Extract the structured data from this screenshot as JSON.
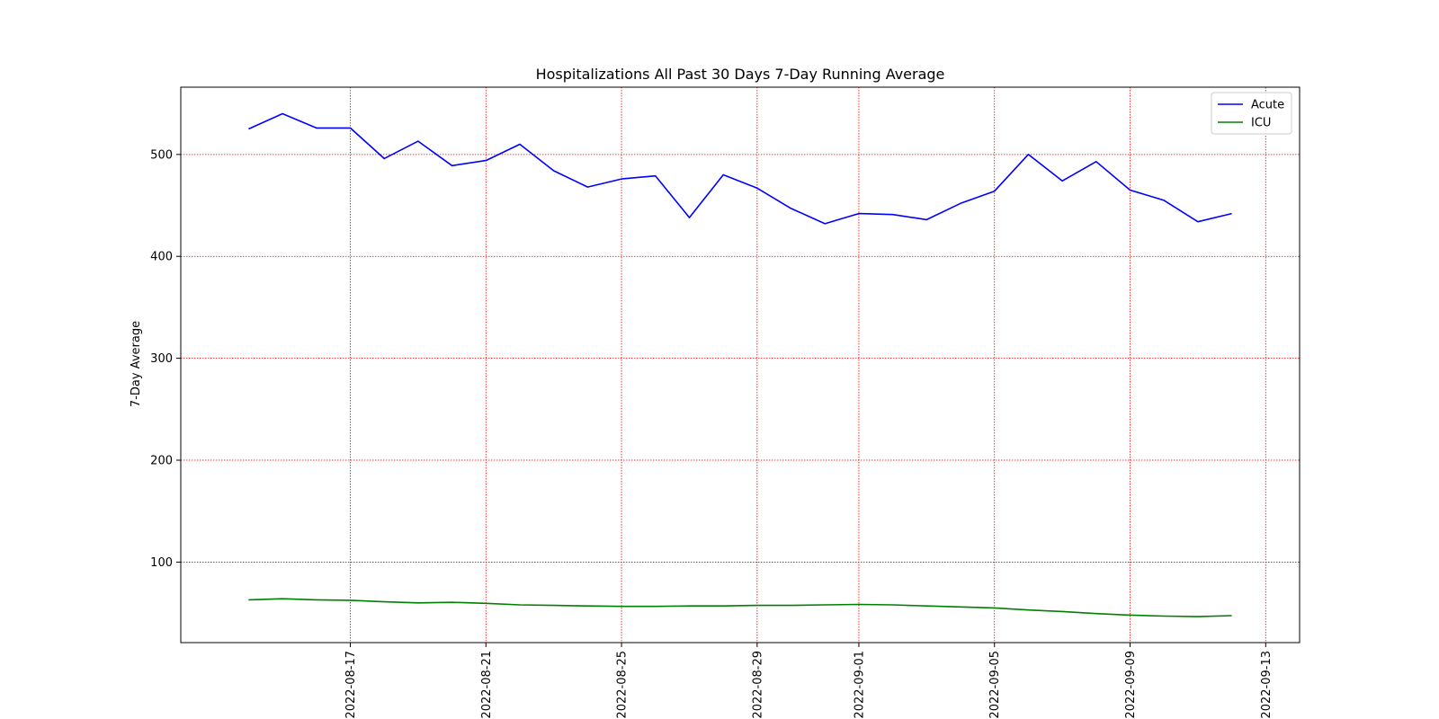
{
  "chart_data": {
    "type": "line",
    "title": "Hospitalizations All Past 30 Days 7-Day Running Average",
    "xlabel": "",
    "ylabel": "7-Day Average",
    "x": [
      "2022-08-14",
      "2022-08-15",
      "2022-08-16",
      "2022-08-17",
      "2022-08-18",
      "2022-08-19",
      "2022-08-20",
      "2022-08-21",
      "2022-08-22",
      "2022-08-23",
      "2022-08-24",
      "2022-08-25",
      "2022-08-26",
      "2022-08-27",
      "2022-08-28",
      "2022-08-29",
      "2022-08-30",
      "2022-08-31",
      "2022-09-01",
      "2022-09-02",
      "2022-09-03",
      "2022-09-04",
      "2022-09-05",
      "2022-09-06",
      "2022-09-07",
      "2022-09-08",
      "2022-09-09",
      "2022-09-10",
      "2022-09-11",
      "2022-09-12"
    ],
    "series": [
      {
        "name": "Acute",
        "color": "#0000ff",
        "values": [
          525,
          540,
          526,
          526,
          496,
          513,
          489,
          494,
          510,
          484,
          468,
          476,
          479,
          438,
          480,
          467,
          447,
          432,
          442,
          441,
          436,
          452,
          464,
          500,
          474,
          493,
          465,
          455,
          434,
          442
        ]
      },
      {
        "name": "ICU",
        "color": "#008000",
        "values": [
          63,
          64,
          63,
          62.5,
          61,
          60,
          60.5,
          59.5,
          58,
          57.5,
          57,
          56.5,
          56.5,
          57,
          57,
          57.5,
          57.5,
          58,
          58.5,
          58,
          57,
          56,
          55,
          53,
          51.5,
          49.5,
          48,
          47,
          46.5,
          47.5
        ]
      }
    ],
    "xticks": [
      "2022-08-17",
      "2022-08-21",
      "2022-08-25",
      "2022-08-29",
      "2022-09-01",
      "2022-09-05",
      "2022-09-09",
      "2022-09-13"
    ],
    "yticks": [
      100,
      200,
      300,
      400,
      500
    ],
    "ylim": [
      21,
      566
    ],
    "xlim": [
      "2022-08-12",
      "2022-09-14"
    ],
    "grid": true,
    "grid_color": "#ff0000",
    "legend_position": "top-right"
  }
}
